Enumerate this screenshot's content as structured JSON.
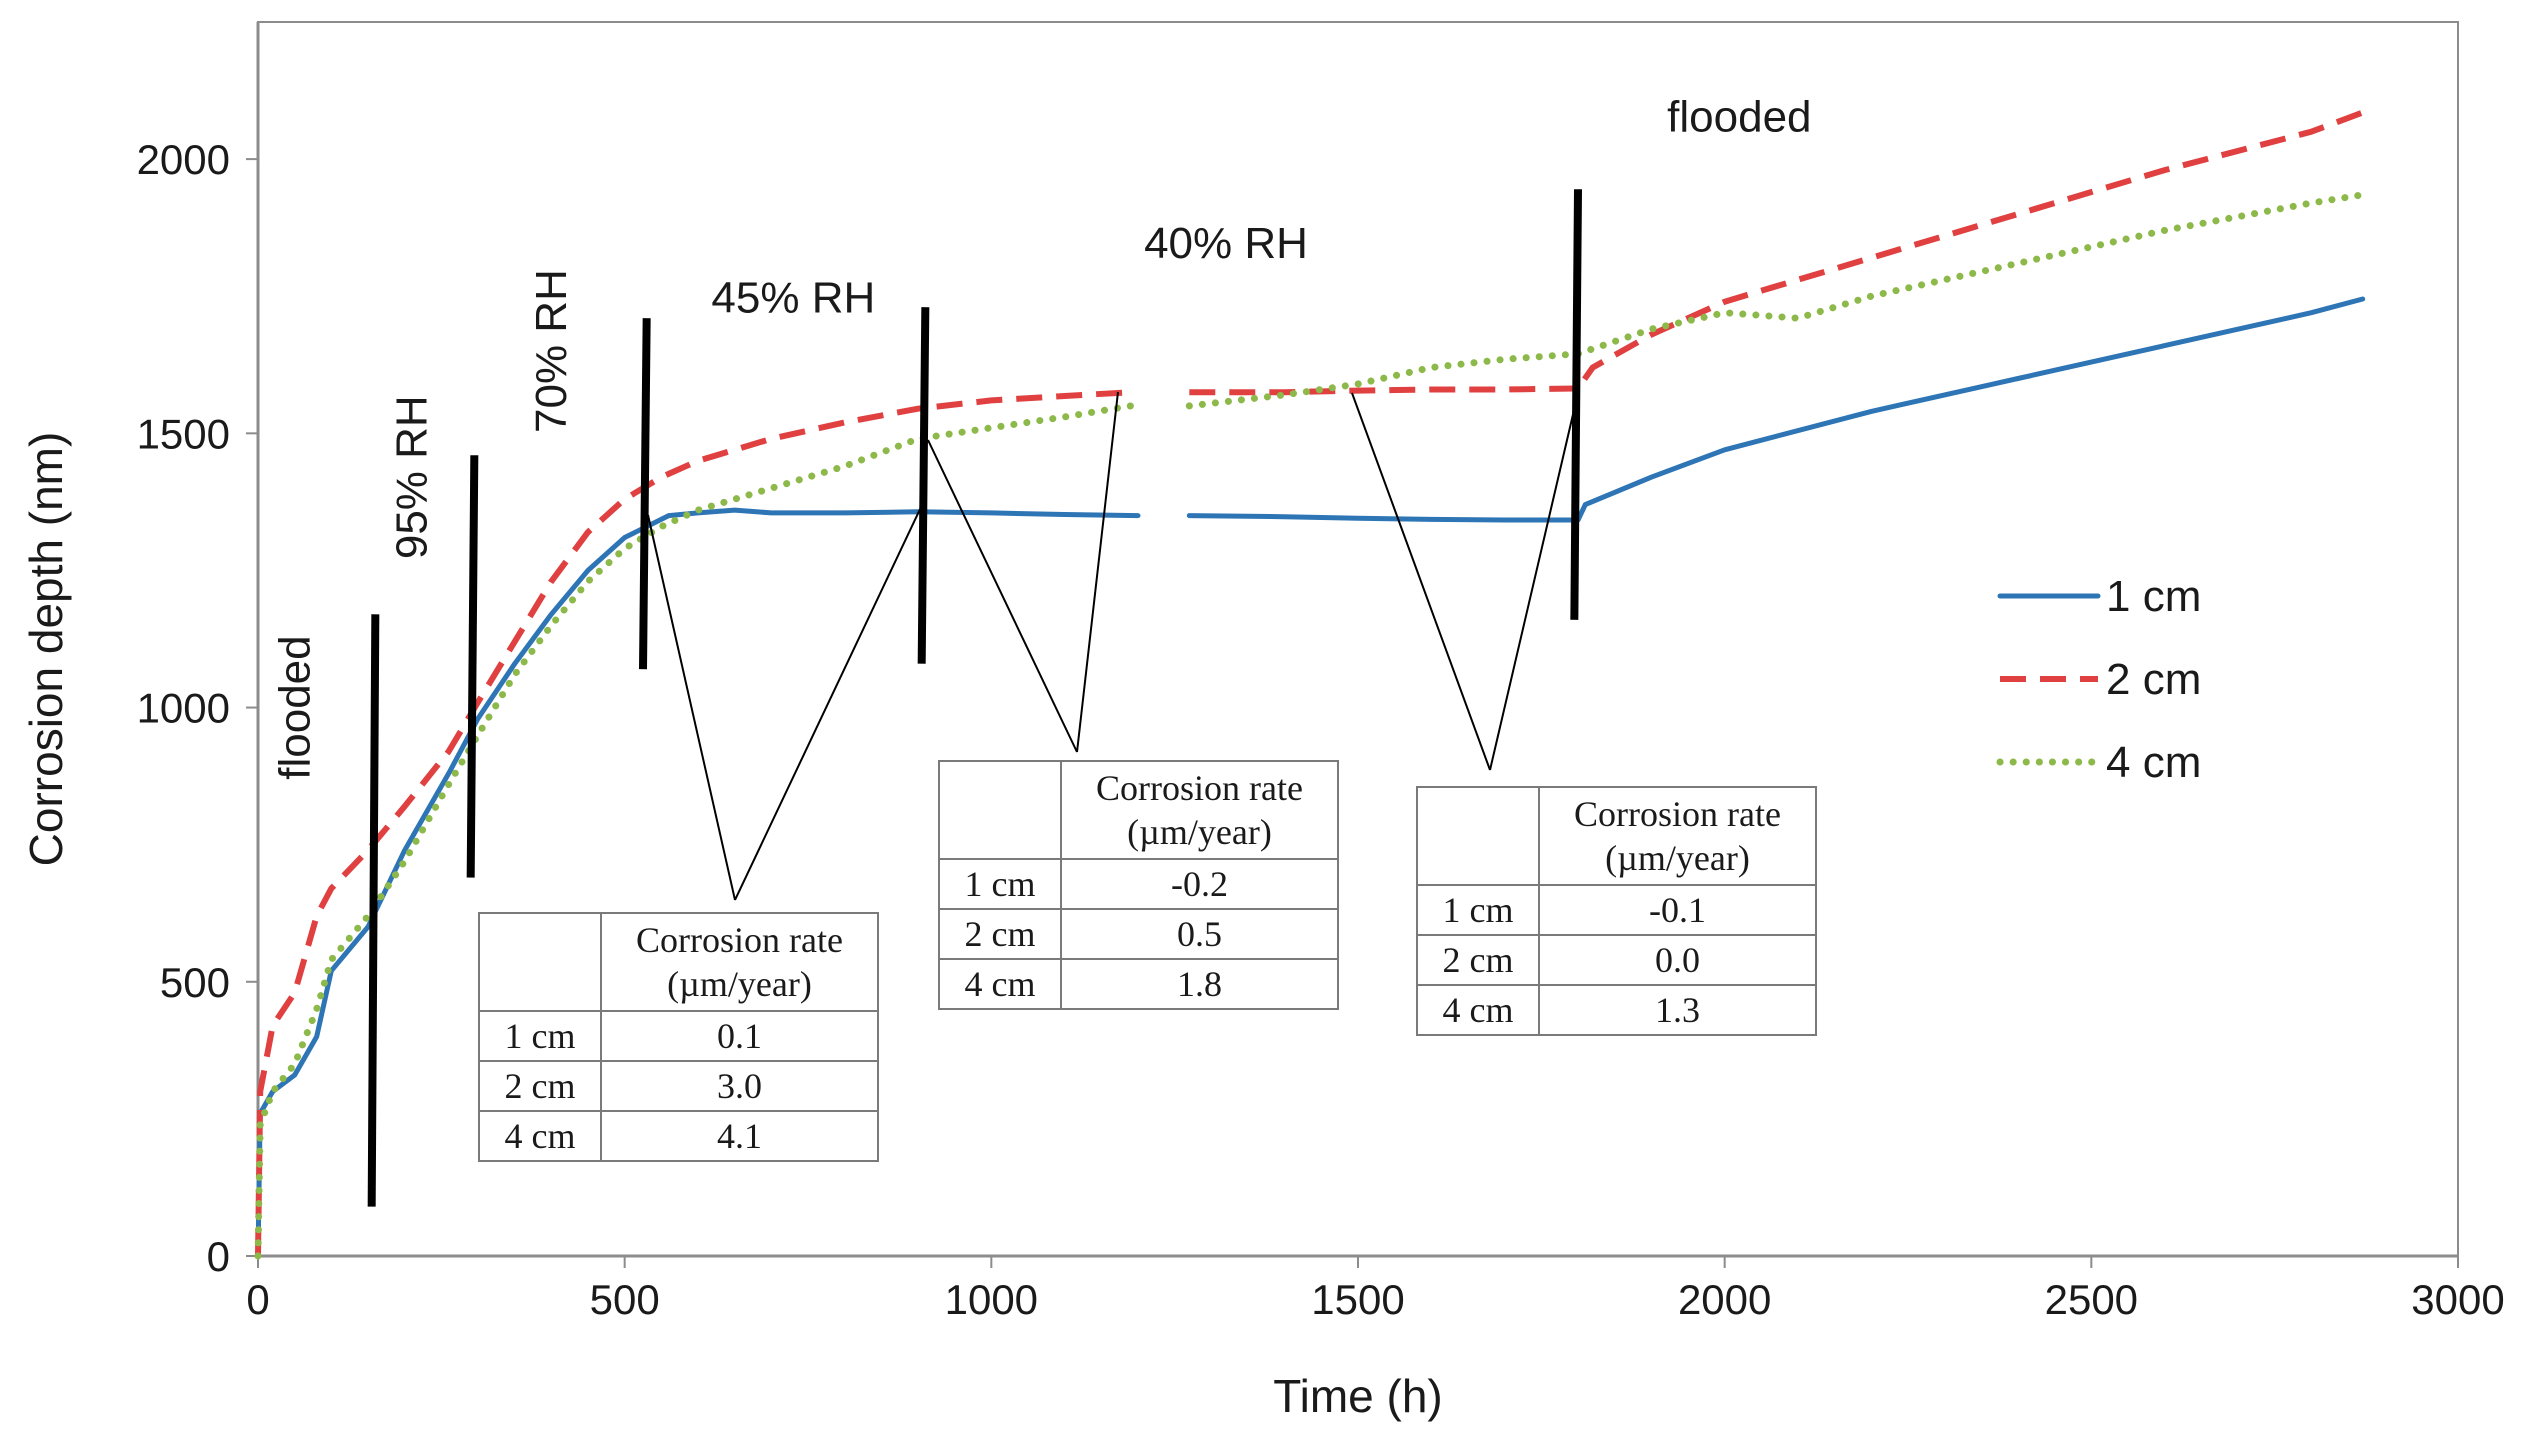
{
  "chart_data": {
    "type": "line",
    "title": "",
    "xlabel": "Time (h)",
    "ylabel": "Corrosion depth (nm)",
    "xlim": [
      0,
      3000
    ],
    "ylim": [
      0,
      2250
    ],
    "xticks": [
      0,
      500,
      1000,
      1500,
      2000,
      2500,
      3000
    ],
    "yticks": [
      0,
      500,
      1000,
      1500,
      2000
    ],
    "xtick_labels": [
      "0",
      "500",
      "1000",
      "1500",
      "2000",
      "2500",
      "3000"
    ],
    "ytick_labels": [
      "0",
      "500",
      "1000",
      "1500",
      "2000"
    ],
    "grid": false,
    "legend_position": "right",
    "series": [
      {
        "name": "1 cm",
        "color": "#2e75b6",
        "style": "solid",
        "segments": [
          [
            [
              0,
              0
            ],
            [
              3,
              260
            ],
            [
              20,
              300
            ],
            [
              50,
              330
            ],
            [
              80,
              400
            ],
            [
              100,
              520
            ],
            [
              150,
              600
            ],
            [
              200,
              740
            ],
            [
              260,
              880
            ],
            [
              300,
              980
            ],
            [
              350,
              1080
            ],
            [
              400,
              1170
            ],
            [
              450,
              1250
            ],
            [
              500,
              1310
            ],
            [
              530,
              1330
            ],
            [
              560,
              1350
            ],
            [
              600,
              1355
            ],
            [
              650,
              1360
            ],
            [
              700,
              1355
            ],
            [
              800,
              1355
            ],
            [
              900,
              1357
            ],
            [
              1000,
              1355
            ],
            [
              1100,
              1352
            ],
            [
              1200,
              1350
            ]
          ],
          [
            [
              1270,
              1350
            ],
            [
              1400,
              1348
            ],
            [
              1500,
              1345
            ],
            [
              1600,
              1343
            ],
            [
              1700,
              1342
            ],
            [
              1800,
              1342
            ],
            [
              1810,
              1370
            ],
            [
              1900,
              1420
            ],
            [
              2000,
              1470
            ],
            [
              2200,
              1540
            ],
            [
              2400,
              1600
            ],
            [
              2600,
              1660
            ],
            [
              2800,
              1720
            ],
            [
              2870,
              1745
            ]
          ]
        ]
      },
      {
        "name": "2 cm",
        "color": "#e04040",
        "style": "dashed",
        "segments": [
          [
            [
              0,
              0
            ],
            [
              3,
              300
            ],
            [
              20,
              420
            ],
            [
              50,
              480
            ],
            [
              80,
              620
            ],
            [
              100,
              670
            ],
            [
              150,
              740
            ],
            [
              200,
              820
            ],
            [
              260,
              920
            ],
            [
              300,
              1010
            ],
            [
              350,
              1120
            ],
            [
              400,
              1230
            ],
            [
              450,
              1320
            ],
            [
              500,
              1380
            ],
            [
              550,
              1420
            ],
            [
              600,
              1450
            ],
            [
              700,
              1490
            ],
            [
              800,
              1520
            ],
            [
              900,
              1545
            ],
            [
              1000,
              1560
            ],
            [
              1100,
              1568
            ],
            [
              1190,
              1575
            ]
          ],
          [
            [
              1270,
              1575
            ],
            [
              1400,
              1575
            ],
            [
              1500,
              1578
            ],
            [
              1600,
              1580
            ],
            [
              1700,
              1580
            ],
            [
              1800,
              1582
            ],
            [
              1820,
              1620
            ],
            [
              1900,
              1680
            ],
            [
              2000,
              1740
            ],
            [
              2200,
              1820
            ],
            [
              2400,
              1900
            ],
            [
              2600,
              1980
            ],
            [
              2800,
              2050
            ],
            [
              2870,
              2085
            ]
          ]
        ]
      },
      {
        "name": "4 cm",
        "color": "#8db84a",
        "style": "dotted",
        "segments": [
          [
            [
              0,
              0
            ],
            [
              3,
              240
            ],
            [
              20,
              300
            ],
            [
              50,
              350
            ],
            [
              80,
              450
            ],
            [
              100,
              540
            ],
            [
              150,
              620
            ],
            [
              200,
              720
            ],
            [
              260,
              860
            ],
            [
              300,
              950
            ],
            [
              350,
              1060
            ],
            [
              400,
              1150
            ],
            [
              450,
              1230
            ],
            [
              500,
              1290
            ],
            [
              550,
              1330
            ],
            [
              600,
              1360
            ],
            [
              700,
              1400
            ],
            [
              800,
              1440
            ],
            [
              900,
              1490
            ],
            [
              1000,
              1510
            ],
            [
              1100,
              1530
            ],
            [
              1190,
              1550
            ]
          ],
          [
            [
              1270,
              1550
            ],
            [
              1400,
              1570
            ],
            [
              1500,
              1590
            ],
            [
              1600,
              1620
            ],
            [
              1700,
              1635
            ],
            [
              1800,
              1645
            ],
            [
              1900,
              1690
            ],
            [
              2000,
              1720
            ],
            [
              2050,
              1715
            ],
            [
              2100,
              1710
            ],
            [
              2200,
              1750
            ],
            [
              2400,
              1810
            ],
            [
              2600,
              1870
            ],
            [
              2800,
              1920
            ],
            [
              2870,
              1935
            ]
          ]
        ]
      }
    ],
    "annotations": [
      {
        "text": "flooded",
        "x": 70,
        "y": 1000,
        "rotated": true
      },
      {
        "text": "95% RH",
        "x": 230,
        "y": 1420,
        "rotated": true
      },
      {
        "text": "70% RH",
        "x": 420,
        "y": 1650,
        "rotated": true
      },
      {
        "text": "45% RH",
        "x": 730,
        "y": 1720,
        "rotated": false
      },
      {
        "text": "40% RH",
        "x": 1320,
        "y": 1820,
        "rotated": false
      },
      {
        "text": "flooded",
        "x": 2020,
        "y": 2050,
        "rotated": false
      }
    ],
    "dividers": [
      {
        "x0": 155,
        "y0": 90,
        "x1": 160,
        "y1": 1170
      },
      {
        "x0": 290,
        "y0": 690,
        "x1": 295,
        "y1": 1460
      },
      {
        "x0": 525,
        "y0": 1070,
        "x1": 530,
        "y1": 1710
      },
      {
        "x0": 905,
        "y0": 1080,
        "x1": 910,
        "y1": 1730
      },
      {
        "x0": 1795,
        "y0": 1160,
        "x1": 1800,
        "y1": 1945
      }
    ],
    "tables": [
      {
        "header": "Corrosion rate (µm/year)",
        "header_line1": "Corrosion rate",
        "header_line2": "(µm/year)",
        "rows": [
          [
            "1 cm",
            "0.1"
          ],
          [
            "2 cm",
            "3.0"
          ],
          [
            "4 cm",
            "4.1"
          ]
        ]
      },
      {
        "header": "Corrosion rate (µm/year)",
        "header_line1": "Corrosion rate",
        "header_line2": "(µm/year)",
        "rows": [
          [
            "1 cm",
            "-0.2"
          ],
          [
            "2 cm",
            "0.5"
          ],
          [
            "4 cm",
            "1.8"
          ]
        ]
      },
      {
        "header": "Corrosion rate (µm/year)",
        "header_line1": "Corrosion rate",
        "header_line2": "(µm/year)",
        "rows": [
          [
            "1 cm",
            "-0.1"
          ],
          [
            "2 cm",
            "0.0"
          ],
          [
            "4 cm",
            "1.3"
          ]
        ]
      }
    ]
  }
}
